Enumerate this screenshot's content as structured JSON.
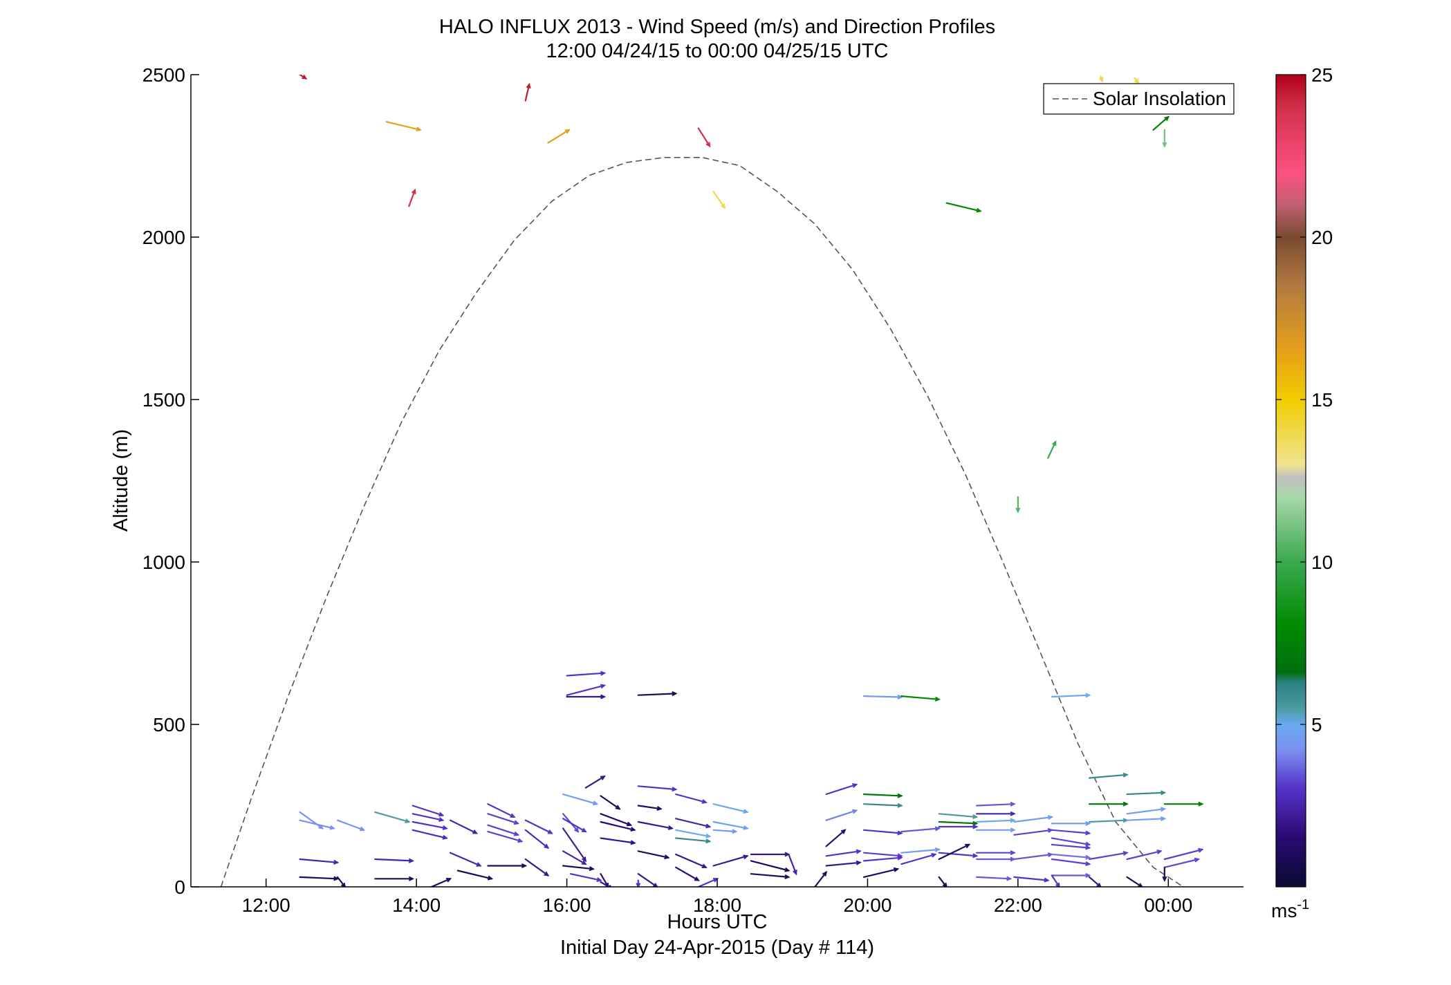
{
  "chart_data": {
    "type": "quiver",
    "title": "HALO INFLUX 2013 - Wind Speed (m/s) and Direction Profiles",
    "subtitle": "12:00 04/24/15 to 00:00 04/25/15  UTC",
    "xlabel": "Hours UTC",
    "xlabel2": "Initial Day 24-Apr-2015 (Day # 114)",
    "ylabel": "Altitude (m)",
    "xlim": [
      11.0,
      25.0
    ],
    "ylim": [
      0,
      2500
    ],
    "x_ticks": [
      {
        "value": 12,
        "label": "12:00"
      },
      {
        "value": 14,
        "label": "14:00"
      },
      {
        "value": 16,
        "label": "16:00"
      },
      {
        "value": 18,
        "label": "18:00"
      },
      {
        "value": 20,
        "label": "20:00"
      },
      {
        "value": 22,
        "label": "22:00"
      },
      {
        "value": 24,
        "label": "00:00"
      }
    ],
    "y_ticks": [
      {
        "value": 0,
        "label": "0"
      },
      {
        "value": 500,
        "label": "500"
      },
      {
        "value": 1000,
        "label": "1000"
      },
      {
        "value": 1500,
        "label": "1500"
      },
      {
        "value": 2000,
        "label": "2000"
      },
      {
        "value": 2500,
        "label": "2500"
      }
    ],
    "grid": false,
    "legend": {
      "position": "top-right",
      "entries": [
        {
          "label": "Solar Insolation",
          "style": "dashed",
          "color": "#555555"
        }
      ]
    },
    "colorbar": {
      "label": "ms",
      "label_sup": "-1",
      "min": 0,
      "max": 25,
      "ticks": [
        {
          "value": 5,
          "label": "5"
        },
        {
          "value": 10,
          "label": "10"
        },
        {
          "value": 15,
          "label": "15"
        },
        {
          "value": 20,
          "label": "20"
        },
        {
          "value": 25,
          "label": "25"
        }
      ],
      "stops": [
        {
          "v": 0,
          "c": "#0a0a33"
        },
        {
          "v": 1.5,
          "c": "#2a0a70"
        },
        {
          "v": 3,
          "c": "#5530c8"
        },
        {
          "v": 4.2,
          "c": "#7a8ff0"
        },
        {
          "v": 5,
          "c": "#6aaaf0"
        },
        {
          "v": 5.5,
          "c": "#4a9aa0"
        },
        {
          "v": 6.3,
          "c": "#2a8080"
        },
        {
          "v": 6.6,
          "c": "#006f10"
        },
        {
          "v": 8,
          "c": "#008a00"
        },
        {
          "v": 10,
          "c": "#3aa850"
        },
        {
          "v": 12,
          "c": "#a8d8a8"
        },
        {
          "v": 12.6,
          "c": "#c0c0c0"
        },
        {
          "v": 13,
          "c": "#f0e490"
        },
        {
          "v": 15,
          "c": "#f0cc00"
        },
        {
          "v": 16.5,
          "c": "#e6a01a"
        },
        {
          "v": 18.5,
          "c": "#b07a40"
        },
        {
          "v": 20,
          "c": "#7a4a30"
        },
        {
          "v": 21,
          "c": "#c06070"
        },
        {
          "v": 22,
          "c": "#ff5080"
        },
        {
          "v": 24,
          "c": "#d0304a"
        },
        {
          "v": 25,
          "c": "#b00018"
        }
      ]
    },
    "solar_insolation": {
      "x": [
        11.4,
        11.8,
        12.3,
        12.8,
        13.3,
        13.8,
        14.3,
        14.8,
        15.3,
        15.8,
        16.3,
        16.8,
        17.3,
        17.8,
        18.3,
        18.8,
        19.3,
        19.8,
        20.3,
        20.8,
        21.3,
        21.8,
        22.3,
        22.8,
        23.3,
        23.8,
        24.2
      ],
      "y": [
        0,
        270,
        590,
        890,
        1170,
        1430,
        1650,
        1830,
        1990,
        2110,
        2190,
        2230,
        2245,
        2245,
        2220,
        2140,
        2040,
        1900,
        1720,
        1510,
        1270,
        1000,
        720,
        440,
        200,
        60,
        0
      ]
    },
    "arrows": [
      {
        "x": 12.45,
        "y": 2500,
        "dx": 0.08,
        "dy": -12,
        "speed": 24.5
      },
      {
        "x": 13.6,
        "y": 2355,
        "dx": 0.45,
        "dy": -25,
        "speed": 16.5
      },
      {
        "x": 13.9,
        "y": 2095,
        "dx": 0.08,
        "dy": 50,
        "speed": 24
      },
      {
        "x": 15.45,
        "y": 2420,
        "dx": 0.05,
        "dy": 50,
        "speed": 24.5
      },
      {
        "x": 15.75,
        "y": 2290,
        "dx": 0.28,
        "dy": 40,
        "speed": 16.5
      },
      {
        "x": 17.75,
        "y": 2335,
        "dx": 0.15,
        "dy": -55,
        "speed": 24
      },
      {
        "x": 17.95,
        "y": 2140,
        "dx": 0.15,
        "dy": -50,
        "speed": 14
      },
      {
        "x": 21.05,
        "y": 2105,
        "dx": 0.45,
        "dy": -25,
        "speed": 8
      },
      {
        "x": 23.1,
        "y": 2495,
        "dx": 0.02,
        "dy": -15,
        "speed": 14
      },
      {
        "x": 23.55,
        "y": 2490,
        "dx": 0.05,
        "dy": -15,
        "speed": 14
      },
      {
        "x": 23.8,
        "y": 2330,
        "dx": 0.2,
        "dy": 40,
        "speed": 7.5
      },
      {
        "x": 23.95,
        "y": 2330,
        "dx": 0.0,
        "dy": -50,
        "speed": 11
      },
      {
        "x": 22.4,
        "y": 1320,
        "dx": 0.1,
        "dy": 50,
        "speed": 10
      },
      {
        "x": 22.0,
        "y": 1200,
        "dx": 0.0,
        "dy": -45,
        "speed": 10.5
      },
      {
        "x": 16.0,
        "y": 650,
        "dx": 0.5,
        "dy": 8,
        "speed": 3
      },
      {
        "x": 16.0,
        "y": 590,
        "dx": 0.5,
        "dy": 30,
        "speed": 3
      },
      {
        "x": 16.0,
        "y": 585,
        "dx": 0.5,
        "dy": 0,
        "speed": 2
      },
      {
        "x": 16.95,
        "y": 590,
        "dx": 0.5,
        "dy": 5,
        "speed": 0.8
      },
      {
        "x": 19.95,
        "y": 587,
        "dx": 0.5,
        "dy": -3,
        "speed": 4.5
      },
      {
        "x": 20.45,
        "y": 587,
        "dx": 0.5,
        "dy": -10,
        "speed": 8
      },
      {
        "x": 22.45,
        "y": 585,
        "dx": 0.5,
        "dy": 5,
        "speed": 5
      },
      {
        "x": 12.45,
        "y": 230,
        "dx": 0.3,
        "dy": -50,
        "speed": 4.2
      },
      {
        "x": 12.45,
        "y": 205,
        "dx": 0.45,
        "dy": -25,
        "speed": 4.2
      },
      {
        "x": 12.95,
        "y": 205,
        "dx": 0.35,
        "dy": -30,
        "speed": 4.3
      },
      {
        "x": 13.45,
        "y": 230,
        "dx": 0.45,
        "dy": -30,
        "speed": 5.5
      },
      {
        "x": 13.95,
        "y": 250,
        "dx": 0.4,
        "dy": -30,
        "speed": 3
      },
      {
        "x": 13.95,
        "y": 225,
        "dx": 0.4,
        "dy": -20,
        "speed": 3
      },
      {
        "x": 13.95,
        "y": 200,
        "dx": 0.45,
        "dy": -20,
        "speed": 3
      },
      {
        "x": 13.95,
        "y": 175,
        "dx": 0.45,
        "dy": -25,
        "speed": 2.8
      },
      {
        "x": 14.45,
        "y": 205,
        "dx": 0.35,
        "dy": -40,
        "speed": 2.5
      },
      {
        "x": 14.95,
        "y": 255,
        "dx": 0.35,
        "dy": -40,
        "speed": 3
      },
      {
        "x": 14.95,
        "y": 225,
        "dx": 0.4,
        "dy": -30,
        "speed": 3.2
      },
      {
        "x": 14.95,
        "y": 190,
        "dx": 0.4,
        "dy": -30,
        "speed": 3.2
      },
      {
        "x": 14.95,
        "y": 170,
        "dx": 0.45,
        "dy": -30,
        "speed": 3.2
      },
      {
        "x": 15.45,
        "y": 205,
        "dx": 0.35,
        "dy": -40,
        "speed": 3
      },
      {
        "x": 15.45,
        "y": 175,
        "dx": 0.3,
        "dy": -55,
        "speed": 2.8
      },
      {
        "x": 15.95,
        "y": 285,
        "dx": 0.45,
        "dy": -30,
        "speed": 4.5
      },
      {
        "x": 15.95,
        "y": 225,
        "dx": 0.2,
        "dy": -55,
        "speed": 3.3
      },
      {
        "x": 15.95,
        "y": 210,
        "dx": 0.3,
        "dy": -40,
        "speed": 3
      },
      {
        "x": 15.95,
        "y": 180,
        "dx": 0.3,
        "dy": -100,
        "speed": 2.2
      },
      {
        "x": 16.25,
        "y": 305,
        "dx": 0.25,
        "dy": 35,
        "speed": 2
      },
      {
        "x": 16.45,
        "y": 280,
        "dx": 0.25,
        "dy": -40,
        "speed": 1
      },
      {
        "x": 16.45,
        "y": 225,
        "dx": 0.4,
        "dy": -35,
        "speed": 1.2
      },
      {
        "x": 16.45,
        "y": 200,
        "dx": 0.45,
        "dy": -25,
        "speed": 1.5
      },
      {
        "x": 16.45,
        "y": 150,
        "dx": 0.45,
        "dy": -15,
        "speed": 1.8
      },
      {
        "x": 16.95,
        "y": 310,
        "dx": 0.5,
        "dy": -10,
        "speed": 3
      },
      {
        "x": 16.95,
        "y": 250,
        "dx": 0.3,
        "dy": -10,
        "speed": 1
      },
      {
        "x": 16.95,
        "y": 200,
        "dx": 0.45,
        "dy": -20,
        "speed": 2
      },
      {
        "x": 17.45,
        "y": 285,
        "dx": 0.4,
        "dy": -25,
        "speed": 3
      },
      {
        "x": 17.45,
        "y": 210,
        "dx": 0.45,
        "dy": -25,
        "speed": 2.5
      },
      {
        "x": 17.45,
        "y": 175,
        "dx": 0.45,
        "dy": -20,
        "speed": 5
      },
      {
        "x": 17.45,
        "y": 150,
        "dx": 0.45,
        "dy": -10,
        "speed": 6
      },
      {
        "x": 17.95,
        "y": 255,
        "dx": 0.45,
        "dy": -25,
        "speed": 4.8
      },
      {
        "x": 17.95,
        "y": 200,
        "dx": 0.45,
        "dy": -20,
        "speed": 4.8
      },
      {
        "x": 17.95,
        "y": 175,
        "dx": 0.3,
        "dy": -5,
        "speed": 4.5
      },
      {
        "x": 12.45,
        "y": 85,
        "dx": 0.5,
        "dy": -10,
        "speed": 2.5
      },
      {
        "x": 12.45,
        "y": 30,
        "dx": 0.5,
        "dy": -5,
        "speed": 1
      },
      {
        "x": 12.95,
        "y": 30,
        "dx": 0.1,
        "dy": -30,
        "speed": 1
      },
      {
        "x": 13.45,
        "y": 85,
        "dx": 0.5,
        "dy": -5,
        "speed": 2.5
      },
      {
        "x": 13.45,
        "y": 25,
        "dx": 0.5,
        "dy": 0,
        "speed": 1
      },
      {
        "x": 14.2,
        "y": 0,
        "dx": 0.25,
        "dy": 25,
        "speed": 1
      },
      {
        "x": 14.45,
        "y": 105,
        "dx": 0.4,
        "dy": -40,
        "speed": 2.5
      },
      {
        "x": 14.55,
        "y": 50,
        "dx": 0.45,
        "dy": -25,
        "speed": 0.8
      },
      {
        "x": 14.95,
        "y": 65,
        "dx": 0.5,
        "dy": 0,
        "speed": 1
      },
      {
        "x": 15.45,
        "y": 85,
        "dx": 0.3,
        "dy": -50,
        "speed": 2
      },
      {
        "x": 15.95,
        "y": 110,
        "dx": 0.3,
        "dy": -40,
        "speed": 2.5
      },
      {
        "x": 15.95,
        "y": 65,
        "dx": 0.4,
        "dy": -10,
        "speed": 1
      },
      {
        "x": 16.05,
        "y": 40,
        "dx": 0.4,
        "dy": -20,
        "speed": 3
      },
      {
        "x": 16.45,
        "y": 40,
        "dx": 0.1,
        "dy": -40,
        "speed": 1.5
      },
      {
        "x": 16.45,
        "y": 15,
        "dx": 0.15,
        "dy": -20,
        "speed": 2
      },
      {
        "x": 16.95,
        "y": 110,
        "dx": 0.4,
        "dy": -20,
        "speed": 1
      },
      {
        "x": 16.95,
        "y": 40,
        "dx": 0.25,
        "dy": -40,
        "speed": 2
      },
      {
        "x": 16.95,
        "y": 20,
        "dx": 0.0,
        "dy": -20,
        "speed": 3
      },
      {
        "x": 17.45,
        "y": 100,
        "dx": 0.4,
        "dy": -40,
        "speed": 2
      },
      {
        "x": 17.45,
        "y": 60,
        "dx": 0.3,
        "dy": -40,
        "speed": 1.5
      },
      {
        "x": 17.75,
        "y": 0,
        "dx": 0.25,
        "dy": 25,
        "speed": 3
      },
      {
        "x": 17.95,
        "y": 65,
        "dx": 0.45,
        "dy": 30,
        "speed": 2
      },
      {
        "x": 18.45,
        "y": 100,
        "dx": 0.5,
        "dy": 0,
        "speed": 2
      },
      {
        "x": 18.45,
        "y": 80,
        "dx": 0.5,
        "dy": -30,
        "speed": 1
      },
      {
        "x": 18.45,
        "y": 40,
        "dx": 0.5,
        "dy": -10,
        "speed": 1
      },
      {
        "x": 18.95,
        "y": 100,
        "dx": 0.1,
        "dy": -60,
        "speed": 2.5
      },
      {
        "x": 19.3,
        "y": 0,
        "dx": 0.15,
        "dy": 45,
        "speed": 1
      },
      {
        "x": 19.45,
        "y": 285,
        "dx": 0.4,
        "dy": 30,
        "speed": 3
      },
      {
        "x": 19.45,
        "y": 205,
        "dx": 0.4,
        "dy": 30,
        "speed": 4
      },
      {
        "x": 19.45,
        "y": 125,
        "dx": 0.25,
        "dy": 50,
        "speed": 1.5
      },
      {
        "x": 19.45,
        "y": 95,
        "dx": 0.45,
        "dy": 15,
        "speed": 3
      },
      {
        "x": 19.45,
        "y": 65,
        "dx": 0.45,
        "dy": 10,
        "speed": 2
      },
      {
        "x": 19.95,
        "y": 285,
        "dx": 0.5,
        "dy": -5,
        "speed": 7
      },
      {
        "x": 19.95,
        "y": 255,
        "dx": 0.5,
        "dy": -5,
        "speed": 6
      },
      {
        "x": 19.95,
        "y": 175,
        "dx": 0.5,
        "dy": -10,
        "speed": 3
      },
      {
        "x": 19.95,
        "y": 105,
        "dx": 0.5,
        "dy": -10,
        "speed": 3.2
      },
      {
        "x": 19.95,
        "y": 80,
        "dx": 0.5,
        "dy": 10,
        "speed": 3
      },
      {
        "x": 19.95,
        "y": 30,
        "dx": 0.45,
        "dy": 25,
        "speed": 1
      },
      {
        "x": 20.45,
        "y": 170,
        "dx": 0.5,
        "dy": 10,
        "speed": 3.5
      },
      {
        "x": 20.45,
        "y": 105,
        "dx": 0.5,
        "dy": 10,
        "speed": 4.5
      },
      {
        "x": 20.45,
        "y": 70,
        "dx": 0.45,
        "dy": 30,
        "speed": 3
      },
      {
        "x": 20.95,
        "y": 225,
        "dx": 0.5,
        "dy": -10,
        "speed": 5.5
      },
      {
        "x": 20.95,
        "y": 200,
        "dx": 0.5,
        "dy": -5,
        "speed": 7
      },
      {
        "x": 20.95,
        "y": 185,
        "dx": 0.5,
        "dy": 0,
        "speed": 3
      },
      {
        "x": 20.95,
        "y": 105,
        "dx": 0.5,
        "dy": -10,
        "speed": 3
      },
      {
        "x": 20.95,
        "y": 85,
        "dx": 0.4,
        "dy": 45,
        "speed": 1
      },
      {
        "x": 20.95,
        "y": 30,
        "dx": 0.1,
        "dy": -30,
        "speed": 1
      },
      {
        "x": 21.45,
        "y": 250,
        "dx": 0.5,
        "dy": 5,
        "speed": 3.5
      },
      {
        "x": 21.45,
        "y": 225,
        "dx": 0.5,
        "dy": 0,
        "speed": 2.5
      },
      {
        "x": 21.45,
        "y": 200,
        "dx": 0.5,
        "dy": 5,
        "speed": 5
      },
      {
        "x": 21.45,
        "y": 175,
        "dx": 0.5,
        "dy": 0,
        "speed": 4.5
      },
      {
        "x": 21.45,
        "y": 105,
        "dx": 0.5,
        "dy": 0,
        "speed": 3.2
      },
      {
        "x": 21.45,
        "y": 85,
        "dx": 0.5,
        "dy": 0,
        "speed": 3.5
      },
      {
        "x": 21.45,
        "y": 30,
        "dx": 0.45,
        "dy": -5,
        "speed": 3.5
      },
      {
        "x": 21.95,
        "y": 200,
        "dx": 0.5,
        "dy": 15,
        "speed": 4.6
      },
      {
        "x": 21.95,
        "y": 160,
        "dx": 0.5,
        "dy": 15,
        "speed": 3.2
      },
      {
        "x": 21.95,
        "y": 85,
        "dx": 0.5,
        "dy": 15,
        "speed": 3.5
      },
      {
        "x": 21.95,
        "y": 30,
        "dx": 0.45,
        "dy": -10,
        "speed": 3
      },
      {
        "x": 22.45,
        "y": 195,
        "dx": 0.5,
        "dy": 0,
        "speed": 4.5
      },
      {
        "x": 22.45,
        "y": 175,
        "dx": 0.5,
        "dy": -10,
        "speed": 3.2
      },
      {
        "x": 22.45,
        "y": 150,
        "dx": 0.5,
        "dy": -20,
        "speed": 3.2
      },
      {
        "x": 22.45,
        "y": 130,
        "dx": 0.5,
        "dy": -10,
        "speed": 3.2
      },
      {
        "x": 22.45,
        "y": 100,
        "dx": 0.5,
        "dy": -10,
        "speed": 3.8
      },
      {
        "x": 22.45,
        "y": 85,
        "dx": 0.5,
        "dy": -15,
        "speed": 3.2
      },
      {
        "x": 22.45,
        "y": 35,
        "dx": 0.5,
        "dy": 0,
        "speed": 3.5
      },
      {
        "x": 22.45,
        "y": 35,
        "dx": 0.1,
        "dy": -35,
        "speed": 3
      },
      {
        "x": 22.95,
        "y": 335,
        "dx": 0.5,
        "dy": 10,
        "speed": 6
      },
      {
        "x": 22.95,
        "y": 255,
        "dx": 0.5,
        "dy": 0,
        "speed": 7
      },
      {
        "x": 22.95,
        "y": 200,
        "dx": 0.5,
        "dy": 5,
        "speed": 5.5
      },
      {
        "x": 22.95,
        "y": 85,
        "dx": 0.5,
        "dy": 20,
        "speed": 3.2
      },
      {
        "x": 22.95,
        "y": 30,
        "dx": 0.15,
        "dy": -30,
        "speed": 2
      },
      {
        "x": 23.45,
        "y": 285,
        "dx": 0.5,
        "dy": 5,
        "speed": 6
      },
      {
        "x": 23.45,
        "y": 225,
        "dx": 0.5,
        "dy": 15,
        "speed": 4.6
      },
      {
        "x": 23.45,
        "y": 205,
        "dx": 0.5,
        "dy": 5,
        "speed": 4.6
      },
      {
        "x": 23.45,
        "y": 85,
        "dx": 0.45,
        "dy": 25,
        "speed": 3.2
      },
      {
        "x": 23.45,
        "y": 30,
        "dx": 0.2,
        "dy": -30,
        "speed": 1
      },
      {
        "x": 23.95,
        "y": 255,
        "dx": 0.5,
        "dy": 0,
        "speed": 7.5
      },
      {
        "x": 23.95,
        "y": 85,
        "dx": 0.5,
        "dy": 30,
        "speed": 3.2
      },
      {
        "x": 23.95,
        "y": 60,
        "dx": 0.45,
        "dy": 25,
        "speed": 3.3
      },
      {
        "x": 23.95,
        "y": 60,
        "dx": 0.0,
        "dy": -40,
        "speed": 1
      }
    ]
  }
}
